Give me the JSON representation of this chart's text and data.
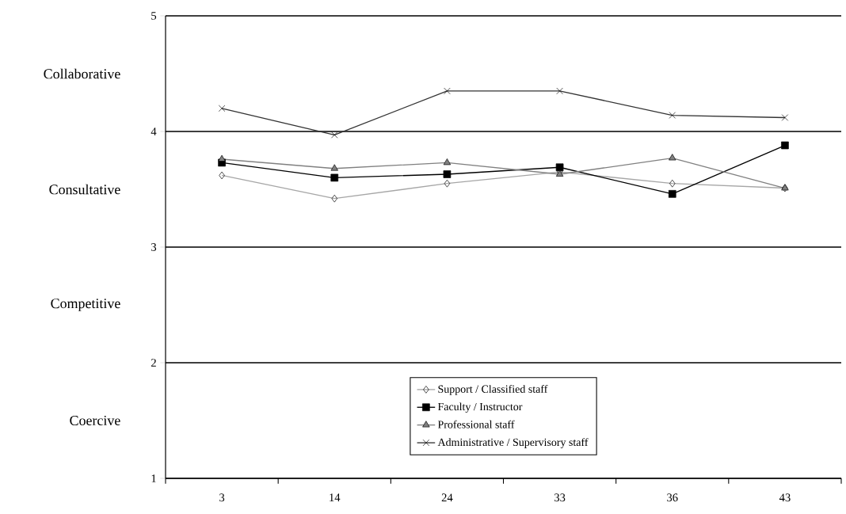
{
  "chart_data": {
    "type": "line",
    "categories": [
      "3",
      "14",
      "24",
      "33",
      "36",
      "43"
    ],
    "series": [
      {
        "name": "Support / Classified staff",
        "color": "#a6a6a6",
        "marker": "diamond",
        "values": [
          3.62,
          3.42,
          3.55,
          3.65,
          3.55,
          3.51
        ]
      },
      {
        "name": "Faculty / Instructor",
        "color": "#000000",
        "marker": "square",
        "values": [
          3.73,
          3.6,
          3.63,
          3.69,
          3.46,
          3.88
        ]
      },
      {
        "name": "Professional staff",
        "color": "#808080",
        "marker": "triangle",
        "values": [
          3.76,
          3.68,
          3.73,
          3.63,
          3.77,
          3.51
        ]
      },
      {
        "name": "Administrative / Supervisory staff",
        "color": "#333333",
        "marker": "cross",
        "values": [
          4.2,
          3.97,
          4.35,
          4.35,
          4.14,
          4.12
        ]
      }
    ],
    "ylim": [
      1,
      5
    ],
    "yticks": [
      1,
      2,
      3,
      4,
      5
    ],
    "annotations": [
      "Collaborative",
      "Consultative",
      "Competitive",
      "Coercive"
    ],
    "grid": "y",
    "legend": "bottom",
    "line_style": "solid"
  }
}
